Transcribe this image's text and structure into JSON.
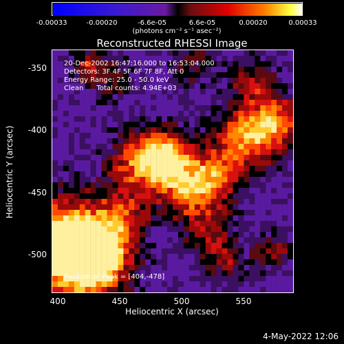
{
  "colorbar": {
    "ticks": [
      "-0.00033",
      "-0.00020",
      "-6.6e-05",
      "6.6e-05",
      "0.00020",
      "0.00033"
    ],
    "unit": "(photons cm⁻² s⁻¹ asec⁻²)"
  },
  "title": "Reconstructed RHESSI Image",
  "annotations": {
    "time": "20-Dec-2002 16:47:16.000 to 16:53:04.000",
    "detectors": "Detectors: 3F 4F 5F 6F 7F 8F, Att 0",
    "energy": "Energy Range: 25.0 - 50.0 keV",
    "clean": "Clean      Total counts: 4.94E+03",
    "peak": "Position of Peak = [404,-478]"
  },
  "axes": {
    "xlabel": "Heliocentric X (arcsec)",
    "ylabel": "Heliocentric Y (arcsec)",
    "xticks": [
      "400",
      "450",
      "500",
      "550"
    ],
    "yticks": [
      "-350",
      "-400",
      "-450",
      "-500"
    ]
  },
  "datestamp": "4-May-2022 12:06",
  "colors": {
    "low": "#0000ff",
    "mid": "#5a1aa0",
    "high": "#ffffff"
  }
}
